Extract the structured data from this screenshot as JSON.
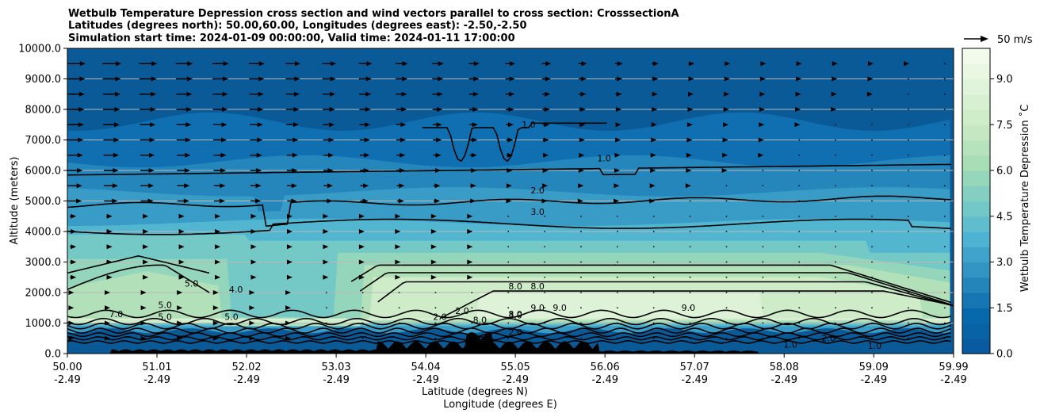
{
  "chart_data": {
    "type": "contour",
    "title_lines": [
      "Wetbulb Temperature Depression cross section and wind vectors parallel to cross section: CrosssectionA",
      "Latitudes (degrees north): 50.00,60.00, Longitudes (degrees east): -2.50,-2.50",
      "Simulation start time: 2024-01-09 00:00:00, Valid time: 2024-01-11 17:00:00"
    ],
    "ylabel": "Altitude (meters)",
    "xlabel_lines": [
      "Latitude (degrees N)",
      "Longitude (degrees E)"
    ],
    "ylim": [
      0,
      10000
    ],
    "xlim": [
      50.0,
      59.99
    ],
    "y_ticks": [
      "0.0",
      "1000.0",
      "2000.0",
      "3000.0",
      "4000.0",
      "5000.0",
      "6000.0",
      "7000.0",
      "8000.0",
      "9000.0",
      "10000.0"
    ],
    "x_ticks": [
      {
        "lat": "50.00",
        "lon": "-2.49"
      },
      {
        "lat": "51.01",
        "lon": "-2.49"
      },
      {
        "lat": "52.02",
        "lon": "-2.49"
      },
      {
        "lat": "53.03",
        "lon": "-2.49"
      },
      {
        "lat": "54.04",
        "lon": "-2.49"
      },
      {
        "lat": "55.05",
        "lon": "-2.49"
      },
      {
        "lat": "56.06",
        "lon": "-2.49"
      },
      {
        "lat": "57.07",
        "lon": "-2.49"
      },
      {
        "lat": "58.08",
        "lon": "-2.49"
      },
      {
        "lat": "59.09",
        "lon": "-2.49"
      },
      {
        "lat": "59.99",
        "lon": "-2.49"
      }
    ],
    "grid": "horizontal",
    "colorbar": {
      "label": "Wetbulb Temperature Depression ˚C",
      "range": [
        0,
        10
      ],
      "levels": 20,
      "tick_labels": [
        "0.0",
        "1.5",
        "3.0",
        "4.5",
        "6.0",
        "7.5",
        "9.0"
      ],
      "colormap_stops": [
        "#08589e",
        "#0868ac",
        "#2b8cbe",
        "#4eb3d3",
        "#7bccc4",
        "#a8ddb5",
        "#ccebc5",
        "#e0f3db",
        "#f7fcf0"
      ]
    },
    "wind_key": {
      "label": "50 m/s"
    },
    "contour_labels": [
      {
        "text": "1.0",
        "lat": 55.2,
        "alt": 7400
      },
      {
        "text": "1.0",
        "lat": 56.05,
        "alt": 6300
      },
      {
        "text": "2.0",
        "lat": 55.3,
        "alt": 5250
      },
      {
        "text": "3.0",
        "lat": 55.3,
        "alt": 4550
      },
      {
        "text": "8.0",
        "lat": 55.05,
        "alt": 2100
      },
      {
        "text": "8.0",
        "lat": 55.3,
        "alt": 2100
      },
      {
        "text": "9.0",
        "lat": 55.55,
        "alt": 1400
      },
      {
        "text": "9.0",
        "lat": 55.3,
        "alt": 1400
      },
      {
        "text": "8.0",
        "lat": 55.05,
        "alt": 1200
      },
      {
        "text": "3.0",
        "lat": 55.05,
        "alt": 1150
      },
      {
        "text": "2.0",
        "lat": 55.05,
        "alt": 600
      },
      {
        "text": "2.0",
        "lat": 58.58,
        "alt": 400
      },
      {
        "text": "1.0",
        "lat": 59.1,
        "alt": 150
      },
      {
        "text": "1.0",
        "lat": 58.15,
        "alt": 200
      },
      {
        "text": "9.0",
        "lat": 57.0,
        "alt": 1400
      },
      {
        "text": "5.0",
        "lat": 51.4,
        "alt": 2200
      },
      {
        "text": "5.0",
        "lat": 51.1,
        "alt": 1500
      },
      {
        "text": "5.0",
        "lat": 51.1,
        "alt": 1100
      },
      {
        "text": "4.0",
        "lat": 51.9,
        "alt": 2000
      },
      {
        "text": "5.0",
        "lat": 51.85,
        "alt": 1100
      },
      {
        "text": "7.0",
        "lat": 50.55,
        "alt": 1200
      },
      {
        "text": "2.0",
        "lat": 54.2,
        "alt": 1100
      },
      {
        "text": "2.0",
        "lat": 54.45,
        "alt": 1300
      },
      {
        "text": "8.0",
        "lat": 54.65,
        "alt": 1000
      }
    ]
  }
}
